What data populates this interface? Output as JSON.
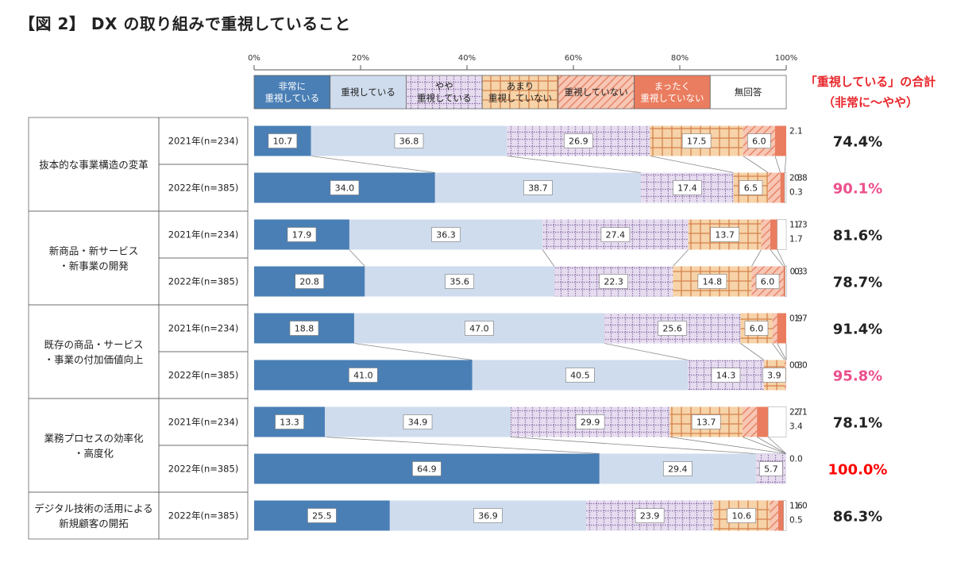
{
  "title": "【図 2】 DX の取り組みで重視していること",
  "total_heading": {
    "line1": "「重視している」の合計",
    "line2": "（非常に〜やや）"
  },
  "colors": {
    "very": "#4a7fb5",
    "somewhat": "#cfdced",
    "slightly": "#e6dcef",
    "not_much": "#f6d3a8",
    "not": "#f2b49c",
    "not_at_all": "#ea7d5f",
    "no_answer": "#ffffff",
    "total_highlight": "#ec4f8c",
    "total_max": "#ff0000"
  },
  "chart_data": {
    "type": "bar",
    "orientation": "horizontal",
    "stacked": true,
    "percent": true,
    "xlim": [
      0,
      100
    ],
    "x_ticks": [
      "0%",
      "20%",
      "40%",
      "60%",
      "80%",
      "100%"
    ],
    "legend_position": "top",
    "series": [
      {
        "name": "非常に\n重視している",
        "color": "very"
      },
      {
        "name": "重視している",
        "color": "somewhat"
      },
      {
        "name": "やや\n重視している",
        "color": "slightly"
      },
      {
        "name": "あまり\n重視していない",
        "color": "not_much"
      },
      {
        "name": "重視していない",
        "color": "not"
      },
      {
        "name": "まったく\n重視していない",
        "color": "not_at_all"
      },
      {
        "name": "無回答",
        "color": "no_answer"
      }
    ],
    "groups": [
      {
        "category": "抜本的な事業構造の変革",
        "rows": [
          {
            "year": "2021年(n=234)",
            "values": [
              10.7,
              36.8,
              26.9,
              17.5,
              6.0,
              2.1,
              0.0
            ],
            "labels": [
              "10.7",
              "36.8",
              "26.9",
              "17.5",
              "6.0",
              "2.1",
              ""
            ],
            "total": "74.4%",
            "total_style": "normal"
          },
          {
            "year": "2022年(n=385)",
            "values": [
              34.0,
              38.7,
              17.4,
              6.5,
              2.3,
              0.8,
              0.3
            ],
            "labels": [
              "34.0",
              "38.7",
              "17.4",
              "6.5",
              "2.3",
              "0.8",
              "0.3"
            ],
            "total": "90.1%",
            "total_style": "highlight"
          }
        ]
      },
      {
        "category": "新商品・新サービス\n・新事業の開発",
        "rows": [
          {
            "year": "2021年(n=234)",
            "values": [
              17.9,
              36.3,
              27.4,
              13.7,
              1.7,
              1.3,
              1.7
            ],
            "labels": [
              "17.9",
              "36.3",
              "27.4",
              "13.7",
              "1.7",
              "1.3",
              "1.7"
            ],
            "total": "81.6%",
            "total_style": "normal"
          },
          {
            "year": "2022年(n=385)",
            "values": [
              20.8,
              35.6,
              22.3,
              14.8,
              6.0,
              0.3,
              0.3
            ],
            "labels": [
              "20.8",
              "35.6",
              "22.3",
              "14.8",
              "6.0",
              "0.3",
              "0.3"
            ],
            "total": "78.7%",
            "total_style": "normal"
          }
        ]
      },
      {
        "category": "既存の商品・サービス\n・事業の付加価値向上",
        "rows": [
          {
            "year": "2021年(n=234)",
            "values": [
              18.8,
              47.0,
              25.6,
              6.0,
              0.9,
              1.7,
              0.0
            ],
            "labels": [
              "18.8",
              "47.0",
              "25.6",
              "6.0",
              "0.9",
              "1.7",
              ""
            ],
            "total": "91.4%",
            "total_style": "normal"
          },
          {
            "year": "2022年(n=385)",
            "values": [
              41.0,
              40.5,
              14.3,
              3.9,
              0.3,
              0.0,
              0.0
            ],
            "labels": [
              "41.0",
              "40.5",
              "14.3",
              "3.9",
              "0.3",
              "0.0",
              ""
            ],
            "total": "95.8%",
            "total_style": "highlight"
          }
        ]
      },
      {
        "category": "業務プロセスの効率化\n・高度化",
        "rows": [
          {
            "year": "2021年(n=234)",
            "values": [
              13.3,
              34.9,
              29.9,
              13.7,
              2.7,
              2.1,
              3.4
            ],
            "labels": [
              "13.3",
              "34.9",
              "29.9",
              "13.7",
              "2.7",
              "2.1",
              "3.4"
            ],
            "total": "78.1%",
            "total_style": "normal"
          },
          {
            "year": "2022年(n=385)",
            "values": [
              64.9,
              29.4,
              5.7,
              0.0,
              0.0,
              0.0,
              0.0
            ],
            "labels": [
              "64.9",
              "29.4",
              "5.7",
              "0.0",
              "",
              "",
              ""
            ],
            "total": "100.0%",
            "total_style": "max"
          }
        ]
      },
      {
        "category": "デジタル技術の活用による\n新規顧客の開拓",
        "rows": [
          {
            "year": "2022年(n=385)",
            "values": [
              25.5,
              36.9,
              23.9,
              10.6,
              1.6,
              1.0,
              0.5
            ],
            "labels": [
              "25.5",
              "36.9",
              "23.9",
              "10.6",
              "1.6",
              "1.0",
              "0.5"
            ],
            "total": "86.3%",
            "total_style": "normal"
          }
        ]
      }
    ]
  }
}
